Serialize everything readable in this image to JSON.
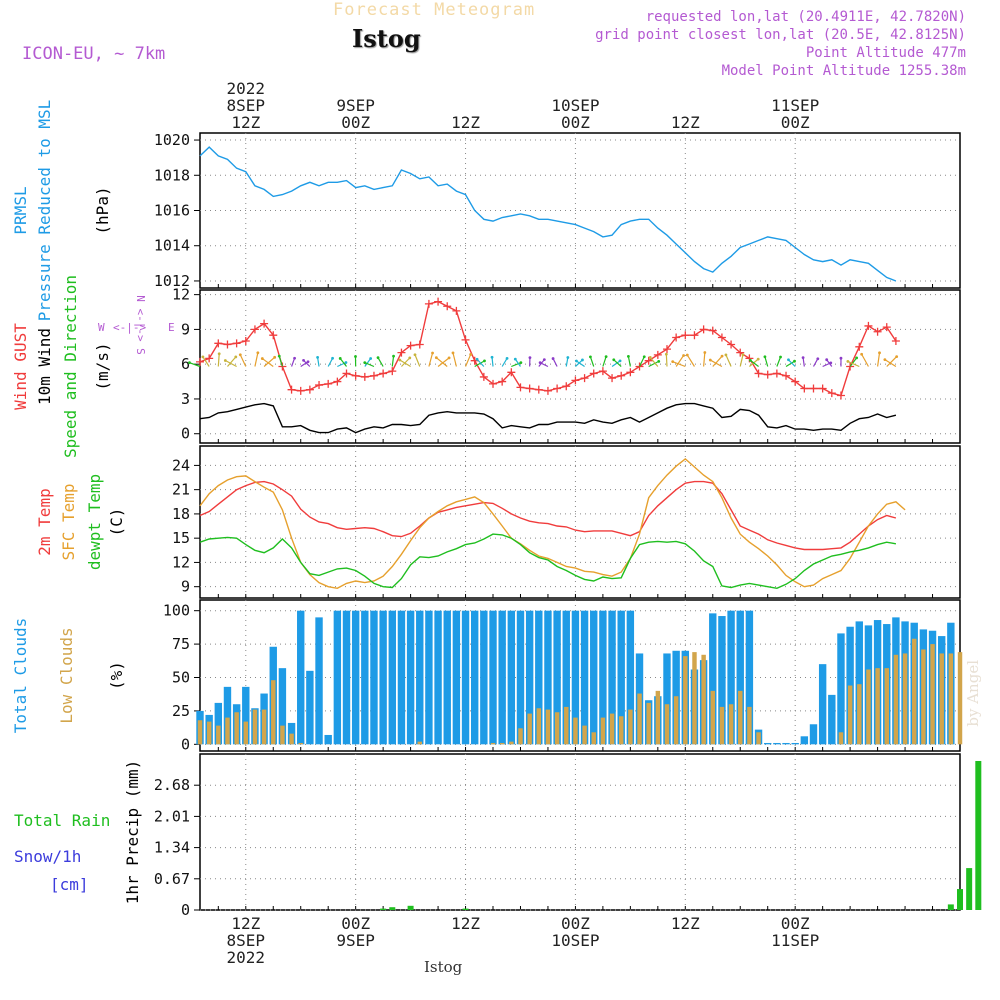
{
  "header": {
    "banner": "Forecast Meteogram",
    "location": "Istog",
    "model": "ICON-EU, ~ 7km",
    "requested": "requested lon,lat (20.4911E, 42.7820N)",
    "grid_point": "grid point closest lon,lat (20.5E, 42.8125N)",
    "point_altitude": "Point Altitude 477m",
    "model_altitude": "Model Point Altitude 1255.38m",
    "footer_location": "Istog",
    "watermark": "by Angel"
  },
  "colors": {
    "blue": "#1e9be6",
    "red": "#f03c3c",
    "orange": "#e6a02d",
    "green": "#1fbe1f",
    "tan": "#d2a54b",
    "purple": "#b45ad2",
    "snow": "#3c3cdc",
    "black": "#000000"
  },
  "time_axis": {
    "top": [
      {
        "hour": 12,
        "lines": [
          "2022",
          "8SEP",
          "12Z"
        ]
      },
      {
        "hour": 24,
        "lines": [
          "9SEP",
          "00Z"
        ]
      },
      {
        "hour": 36,
        "lines": [
          "12Z"
        ]
      },
      {
        "hour": 48,
        "lines": [
          "10SEP",
          "00Z"
        ]
      },
      {
        "hour": 60,
        "lines": [
          "12Z"
        ]
      },
      {
        "hour": 72,
        "lines": [
          "11SEP",
          "00Z"
        ]
      }
    ],
    "bottom": [
      {
        "hour": 12,
        "lines": [
          "12Z",
          "8SEP",
          "2022"
        ]
      },
      {
        "hour": 24,
        "lines": [
          "00Z",
          "9SEP"
        ]
      },
      {
        "hour": 36,
        "lines": [
          "12Z"
        ]
      },
      {
        "hour": 48,
        "lines": [
          "00Z",
          "10SEP"
        ]
      },
      {
        "hour": 60,
        "lines": [
          "12Z"
        ]
      },
      {
        "hour": 72,
        "lines": [
          "00Z",
          "11SEP"
        ]
      }
    ]
  },
  "chart_data": [
    {
      "type": "line",
      "panel": "pressure",
      "axis_labels": [
        {
          "text": "PRMSL",
          "color": "blue"
        },
        {
          "text": "Pressure Reduced to MSL",
          "color": "blue"
        },
        {
          "text": "(hPa)",
          "color": "black"
        }
      ],
      "ylim": [
        1011.6,
        1020.4
      ],
      "yticks": [
        1012,
        1014,
        1016,
        1018,
        1020
      ],
      "x_hours_start": 7,
      "x_step": 1,
      "series": [
        {
          "color": "blue",
          "values": [
            1019.1,
            1019.6,
            1019.1,
            1018.9,
            1018.4,
            1018.2,
            1017.4,
            1017.2,
            1016.8,
            1016.9,
            1017.1,
            1017.4,
            1017.6,
            1017.4,
            1017.6,
            1017.6,
            1017.7,
            1017.3,
            1017.4,
            1017.2,
            1017.3,
            1017.4,
            1018.3,
            1018.1,
            1017.8,
            1017.9,
            1017.4,
            1017.5,
            1017.1,
            1016.9,
            1016.0,
            1015.5,
            1015.4,
            1015.6,
            1015.7,
            1015.8,
            1015.7,
            1015.5,
            1015.5,
            1015.4,
            1015.3,
            1015.2,
            1015.0,
            1014.8,
            1014.5,
            1014.6,
            1015.2,
            1015.4,
            1015.5,
            1015.5,
            1015.0,
            1014.6,
            1014.1,
            1013.6,
            1013.1,
            1012.7,
            1012.5,
            1013.0,
            1013.4,
            1013.9,
            1014.1,
            1014.3,
            1014.5,
            1014.4,
            1014.3,
            1013.9,
            1013.5,
            1013.2,
            1013.1,
            1013.2,
            1012.9,
            1013.2,
            1013.1,
            1013.0,
            1012.6,
            1012.2,
            1012.0
          ]
        }
      ]
    },
    {
      "type": "line",
      "panel": "wind",
      "axis_labels": [
        {
          "text": "Wind GUST",
          "color": "red"
        },
        {
          "text": "10m Wind",
          "color": "black"
        },
        {
          "text": "Speed and Direction",
          "color": "green"
        },
        {
          "text": "(m/s)",
          "color": "black"
        }
      ],
      "compass": {
        "n": "N",
        "s": "S",
        "w": "W",
        "e": "E",
        "color": "purple"
      },
      "ylim": [
        -0.8,
        12.4
      ],
      "yticks": [
        0,
        3,
        6,
        9,
        12
      ],
      "x_hours_start": 7,
      "x_step": 1,
      "series": [
        {
          "name": "Wind GUST",
          "color": "red",
          "marker": "+",
          "values": [
            6.2,
            6.5,
            7.8,
            7.7,
            7.8,
            8.0,
            9.0,
            9.5,
            8.5,
            5.8,
            3.8,
            3.7,
            3.8,
            4.2,
            4.3,
            4.5,
            5.2,
            5.0,
            4.9,
            5.0,
            5.2,
            5.4,
            7.0,
            7.6,
            7.7,
            11.2,
            11.4,
            11.0,
            10.6,
            8.1,
            6.3,
            4.9,
            4.3,
            4.5,
            5.3,
            4.0,
            3.9,
            3.8,
            3.7,
            3.9,
            4.1,
            4.6,
            4.8,
            5.2,
            5.4,
            4.8,
            5.0,
            5.3,
            5.8,
            6.3,
            6.8,
            7.3,
            8.3,
            8.5,
            8.5,
            9.0,
            8.9,
            8.3,
            7.7,
            7.0,
            6.5,
            5.2,
            5.1,
            5.2,
            5.0,
            4.5,
            3.9,
            3.9,
            3.9,
            3.5,
            3.3,
            5.8,
            7.5,
            9.3,
            8.8,
            9.2,
            8.0
          ]
        },
        {
          "name": "10m Wind",
          "color": "black",
          "values": [
            1.3,
            1.4,
            1.8,
            1.9,
            2.1,
            2.3,
            2.5,
            2.6,
            2.4,
            0.6,
            0.6,
            0.7,
            0.3,
            0.1,
            0.1,
            0.4,
            0.5,
            0.1,
            0.4,
            0.6,
            0.5,
            0.8,
            0.8,
            0.7,
            0.8,
            1.6,
            1.8,
            1.9,
            1.8,
            1.8,
            1.8,
            1.7,
            1.3,
            0.5,
            0.7,
            0.6,
            0.5,
            0.8,
            0.8,
            1.0,
            1.0,
            1.0,
            0.9,
            1.2,
            1.0,
            0.9,
            1.2,
            1.4,
            1.0,
            1.4,
            1.8,
            2.2,
            2.5,
            2.6,
            2.6,
            2.4,
            2.2,
            1.4,
            1.5,
            2.1,
            2.0,
            1.6,
            0.6,
            0.5,
            0.7,
            0.4,
            0.4,
            0.3,
            0.4,
            0.4,
            0.3,
            0.9,
            1.3,
            1.4,
            1.7,
            1.4,
            1.6
          ]
        },
        {
          "name": "Speed and Direction",
          "color": "green",
          "arrows_at": 5.8
        }
      ]
    },
    {
      "type": "line",
      "panel": "temperature",
      "axis_labels": [
        {
          "text": "2m Temp",
          "color": "red"
        },
        {
          "text": "SFC Temp",
          "color": "orange"
        },
        {
          "text": "dewpt Temp",
          "color": "green"
        },
        {
          "text": "(C)",
          "color": "black"
        }
      ],
      "ylim": [
        7.6,
        26.4
      ],
      "yticks": [
        9,
        12,
        15,
        18,
        21,
        24
      ],
      "x_hours_start": 7,
      "x_step": 1,
      "series": [
        {
          "name": "2m Temp",
          "color": "red",
          "values": [
            17.8,
            18.3,
            19.2,
            20.1,
            21.0,
            21.5,
            21.9,
            22.0,
            21.7,
            21.0,
            20.2,
            18.6,
            17.6,
            17.0,
            16.8,
            16.3,
            16.1,
            16.2,
            16.3,
            16.2,
            15.8,
            15.3,
            15.2,
            15.6,
            16.5,
            17.5,
            18.2,
            18.5,
            18.8,
            19.0,
            19.2,
            19.4,
            19.3,
            18.7,
            18.0,
            17.5,
            17.1,
            16.9,
            16.8,
            16.5,
            16.4,
            16.0,
            15.8,
            15.9,
            15.9,
            15.9,
            15.6,
            15.3,
            15.8,
            17.8,
            19.0,
            20.0,
            21.0,
            21.8,
            22.0,
            22.0,
            21.8,
            20.5,
            18.5,
            16.5,
            16.0,
            15.5,
            14.8,
            14.4,
            14.1,
            13.8,
            13.6,
            13.6,
            13.6,
            13.7,
            13.8,
            14.5,
            15.5,
            16.5,
            17.3,
            17.8,
            17.5
          ]
        },
        {
          "name": "SFC Temp",
          "color": "orange",
          "values": [
            19.0,
            20.5,
            21.5,
            22.2,
            22.6,
            22.7,
            22.0,
            21.3,
            20.7,
            18.5,
            15.0,
            12.0,
            10.5,
            9.5,
            9.0,
            8.8,
            9.4,
            9.7,
            9.5,
            9.7,
            10.3,
            11.5,
            13.0,
            14.7,
            16.3,
            17.5,
            18.3,
            19.0,
            19.5,
            19.8,
            20.1,
            19.4,
            18.0,
            16.5,
            15.0,
            14.3,
            13.5,
            12.8,
            12.5,
            12.0,
            11.5,
            11.3,
            10.9,
            10.8,
            10.5,
            10.3,
            10.8,
            12.5,
            15.5,
            20.0,
            21.5,
            22.8,
            23.9,
            24.8,
            23.8,
            22.8,
            22.0,
            20.0,
            17.5,
            15.5,
            14.5,
            13.7,
            12.8,
            11.7,
            10.4,
            9.6,
            9.0,
            9.2,
            10.0,
            10.5,
            11.0,
            12.5,
            14.5,
            16.5,
            18.0,
            19.2,
            19.5,
            18.5
          ]
        },
        {
          "name": "dewpt Temp",
          "color": "green",
          "values": [
            14.5,
            14.9,
            15.0,
            15.1,
            15.0,
            14.2,
            13.5,
            13.2,
            13.8,
            14.9,
            13.8,
            12.0,
            10.6,
            10.4,
            10.8,
            11.2,
            11.3,
            11.0,
            10.3,
            9.4,
            9.0,
            8.9,
            10.0,
            11.7,
            12.7,
            12.6,
            12.8,
            13.3,
            13.7,
            14.2,
            14.4,
            14.9,
            15.5,
            15.4,
            15.0,
            14.2,
            13.2,
            12.6,
            12.3,
            11.5,
            11.0,
            10.4,
            9.9,
            9.7,
            10.2,
            10.0,
            10.1,
            12.5,
            14.2,
            14.5,
            14.6,
            14.5,
            14.6,
            14.3,
            13.4,
            12.2,
            11.5,
            9.1,
            8.9,
            9.2,
            9.4,
            9.2,
            9.0,
            8.8,
            9.3,
            10.0,
            11.0,
            11.8,
            12.3,
            12.8,
            13.0,
            13.3,
            13.5,
            13.8,
            14.2,
            14.5,
            14.3
          ]
        }
      ]
    },
    {
      "type": "bar",
      "panel": "clouds",
      "axis_labels": [
        {
          "text": "Total Clouds",
          "color": "blue"
        },
        {
          "text": "Low Clouds",
          "color": "tan"
        },
        {
          "text": "(%)",
          "color": "black"
        }
      ],
      "ylim": [
        -5,
        108
      ],
      "yticks": [
        0,
        25,
        50,
        75,
        100
      ],
      "x_hours_start": 7,
      "x_step": 1,
      "series": [
        {
          "name": "Total Clouds",
          "color": "blue",
          "values": [
            25,
            22,
            31,
            43,
            30,
            43,
            27,
            38,
            73,
            57,
            16,
            100,
            55,
            95,
            7,
            100,
            100,
            100,
            100,
            100,
            100,
            100,
            100,
            100,
            100,
            100,
            100,
            100,
            100,
            100,
            100,
            100,
            100,
            100,
            100,
            100,
            100,
            100,
            100,
            100,
            100,
            100,
            100,
            100,
            100,
            100,
            100,
            100,
            68,
            33,
            36,
            68,
            70,
            70,
            56,
            63,
            98,
            96,
            100,
            100,
            100,
            11,
            1,
            1,
            1,
            1,
            6,
            15,
            60,
            37,
            83,
            88,
            92,
            89,
            93,
            90,
            95,
            92,
            91,
            86,
            85,
            81,
            91
          ]
        },
        {
          "name": "Low Clouds",
          "color": "tan",
          "values": [
            18,
            17,
            14,
            20,
            24,
            17,
            26,
            26,
            48,
            14,
            8,
            1,
            0,
            0,
            0,
            0,
            0,
            0,
            0,
            0,
            0,
            0,
            0,
            0,
            2,
            0,
            0,
            0,
            0,
            0,
            0,
            0,
            1,
            1,
            2,
            12,
            23,
            27,
            26,
            24,
            28,
            20,
            14,
            9,
            20,
            23,
            21,
            26,
            38,
            31,
            40,
            30,
            36,
            66,
            69,
            67,
            40,
            28,
            30,
            40,
            28,
            9,
            0,
            0,
            0,
            0,
            0,
            0,
            0,
            0,
            9,
            44,
            45,
            56,
            57,
            57,
            67,
            68,
            79,
            71,
            75,
            68,
            68,
            69
          ]
        }
      ]
    },
    {
      "type": "bar",
      "panel": "precipitation",
      "axis_labels": [
        {
          "text": "Total  Rain",
          "color": "green"
        },
        {
          "text": "Snow/1h",
          "color": "snow"
        },
        {
          "text": "[cm]",
          "color": "snow"
        },
        {
          "text": "1hr Precip (mm)",
          "color": "black"
        }
      ],
      "ylim": [
        0,
        3.35
      ],
      "yticks": [
        0,
        0.67,
        1.34,
        2.01,
        2.68
      ],
      "x_hours_start": 7,
      "x_step": 1,
      "series": [
        {
          "name": "Total  Rain",
          "color": "green",
          "values": [
            0,
            0,
            0,
            0,
            0,
            0,
            0,
            0,
            0,
            0,
            0,
            0,
            0,
            0,
            0,
            0,
            0,
            0,
            0,
            0,
            0.03,
            0.06,
            0,
            0.09,
            0,
            0,
            0,
            0,
            0,
            0.03,
            0,
            0,
            0,
            0,
            0,
            0,
            0,
            0,
            0,
            0,
            0,
            0,
            0,
            0,
            0,
            0,
            0,
            0,
            0,
            0,
            0,
            0,
            0,
            0,
            0,
            0,
            0,
            0,
            0,
            0,
            0,
            0,
            0,
            0,
            0,
            0,
            0,
            0,
            0,
            0,
            0,
            0,
            0,
            0,
            0,
            0,
            0,
            0,
            0,
            0,
            0,
            0,
            0.12,
            0.45,
            0.9,
            3.2
          ]
        }
      ]
    }
  ]
}
